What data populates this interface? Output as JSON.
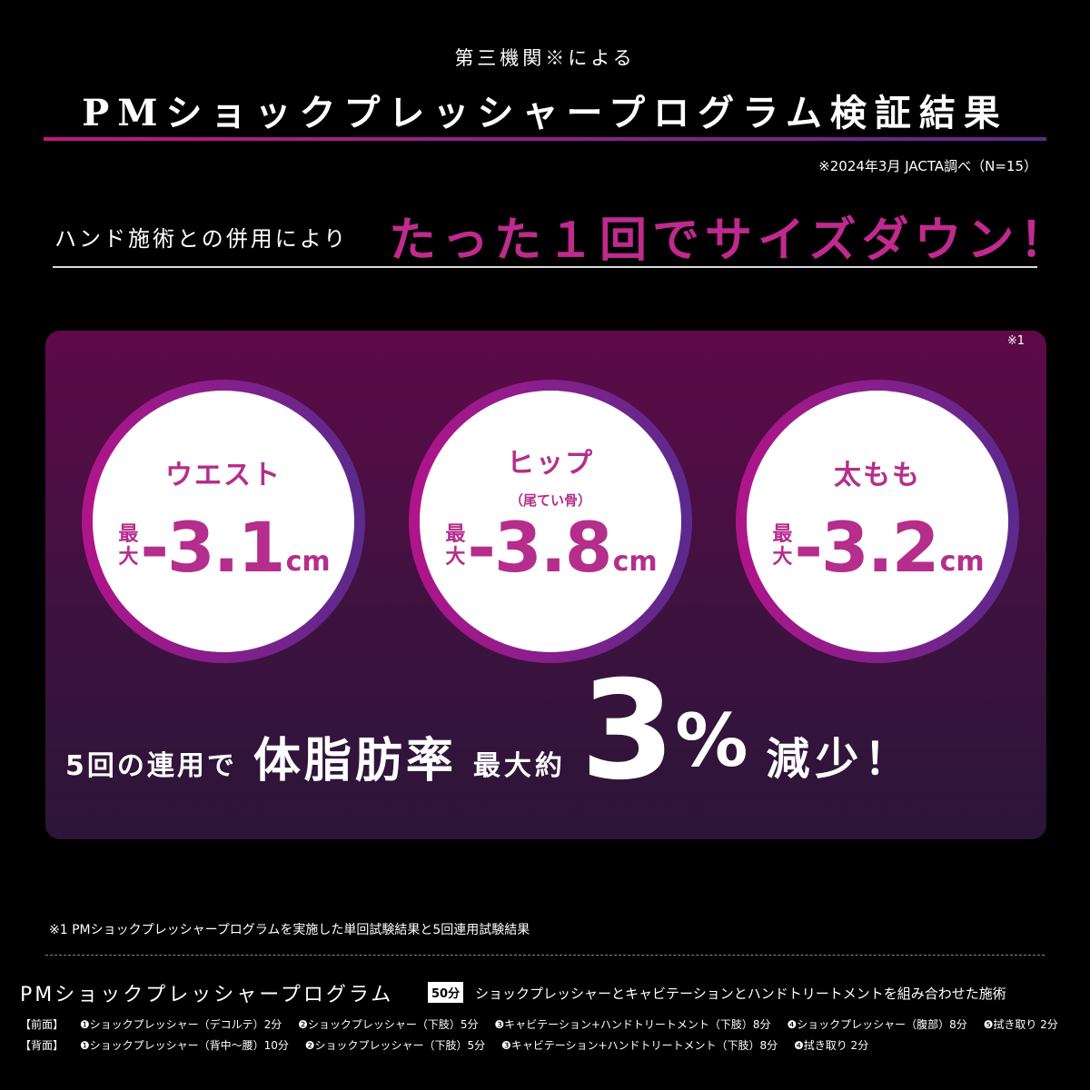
{
  "header": {
    "kicker": "第三機関※による",
    "title": "PMショックプレッシャープログラム検証結果",
    "source": "※2024年3月 JACTA調べ（N=15）"
  },
  "lead": {
    "text": "ハンド施術との併用により",
    "headline": "たった１回でサイズダウン！"
  },
  "panel": {
    "note": "※1",
    "results": [
      {
        "label": "ウエスト",
        "sub": "",
        "prefix": "最大",
        "value": "-3.1",
        "unit": "cm"
      },
      {
        "label": "ヒップ",
        "sub": "（尾てい骨）",
        "prefix": "最大",
        "value": "-3.8",
        "unit": "cm"
      },
      {
        "label": "太もも",
        "sub": "",
        "prefix": "最大",
        "value": "-3.2",
        "unit": "cm"
      }
    ],
    "bottom": {
      "p1": "5回の連用で",
      "p2": "体脂肪率",
      "p3": "最大約",
      "p4": "3",
      "p5": "%",
      "p6": "減少！"
    }
  },
  "footnote": "※1  PMショックプレッシャープログラムを実施した単回試験結果と5回連用試験結果",
  "program": {
    "name": "PMショックプレッシャープログラム",
    "badge": "50分",
    "desc": "ショックプレッシャーとキャビテーションとハンドトリートメントを組み合わせた施術",
    "front": {
      "label": "【前面】",
      "steps": [
        "❶ショックプレッシャー（デコルテ）2分",
        "❷ショックプレッシャー（下肢）5分",
        "❸キャビテーション+ハンドトリートメント（下肢）8分",
        "❹ショックプレッシャー（腹部）8分",
        "❺拭き取り 2分"
      ]
    },
    "back": {
      "label": "【背面】",
      "steps": [
        "❶ショックプレッシャー（背中〜腰）10分",
        "❷ショックプレッシャー（下肢）5分",
        "❸キャビテーション+ハンドトリートメント（下肢）8分",
        "❹拭き取り 2分"
      ]
    }
  },
  "colors": {
    "accent": "#c02a8e",
    "ring_end": "#5a2a8c"
  }
}
